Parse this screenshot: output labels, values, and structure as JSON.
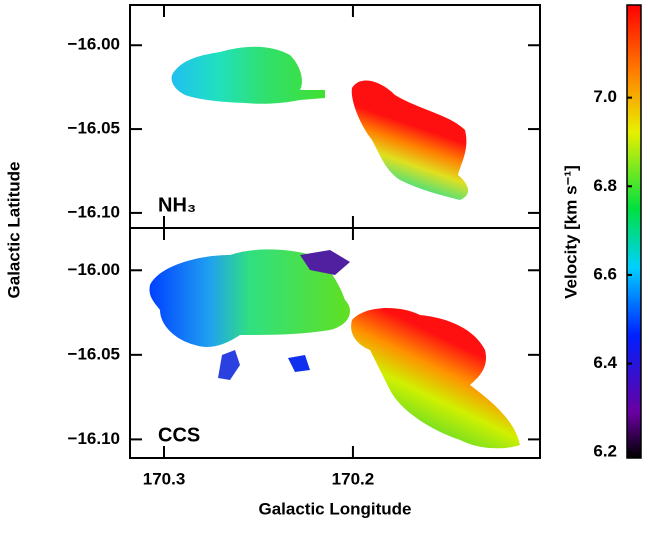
{
  "figure": {
    "x_label": "Galactic Longitude",
    "y_label": "Galactic Latitude"
  },
  "chart_data": [
    {
      "type": "velocity-map",
      "label": "NH₃",
      "xlim": [
        170.318,
        170.101
      ],
      "xticks": [
        170.3,
        170.2
      ],
      "ylim": [
        -16.109,
        -15.976
      ],
      "yticks": [
        {
          "value": -16.0,
          "label": "−16.00"
        },
        {
          "value": -16.05,
          "label": "−16.05"
        },
        {
          "value": -16.1,
          "label": "−16.10"
        }
      ]
    },
    {
      "type": "velocity-map",
      "label": "CCS",
      "xlim": [
        170.318,
        170.101
      ],
      "xticks": [
        170.3,
        170.2
      ],
      "ylim": [
        -16.111,
        -15.975
      ],
      "yticks": [
        {
          "value": -16.0,
          "label": "−16.00"
        },
        {
          "value": -16.05,
          "label": "−16.05"
        },
        {
          "value": -16.1,
          "label": "−16.10"
        }
      ]
    },
    {
      "type": "colorbar",
      "label": "Velocity [km s⁻¹]",
      "ylim": [
        6.187,
        7.209
      ],
      "yticks": [
        {
          "value": 7.0,
          "label": "7.0"
        },
        6.8,
        6.6,
        6.4,
        6.2
      ]
    }
  ]
}
